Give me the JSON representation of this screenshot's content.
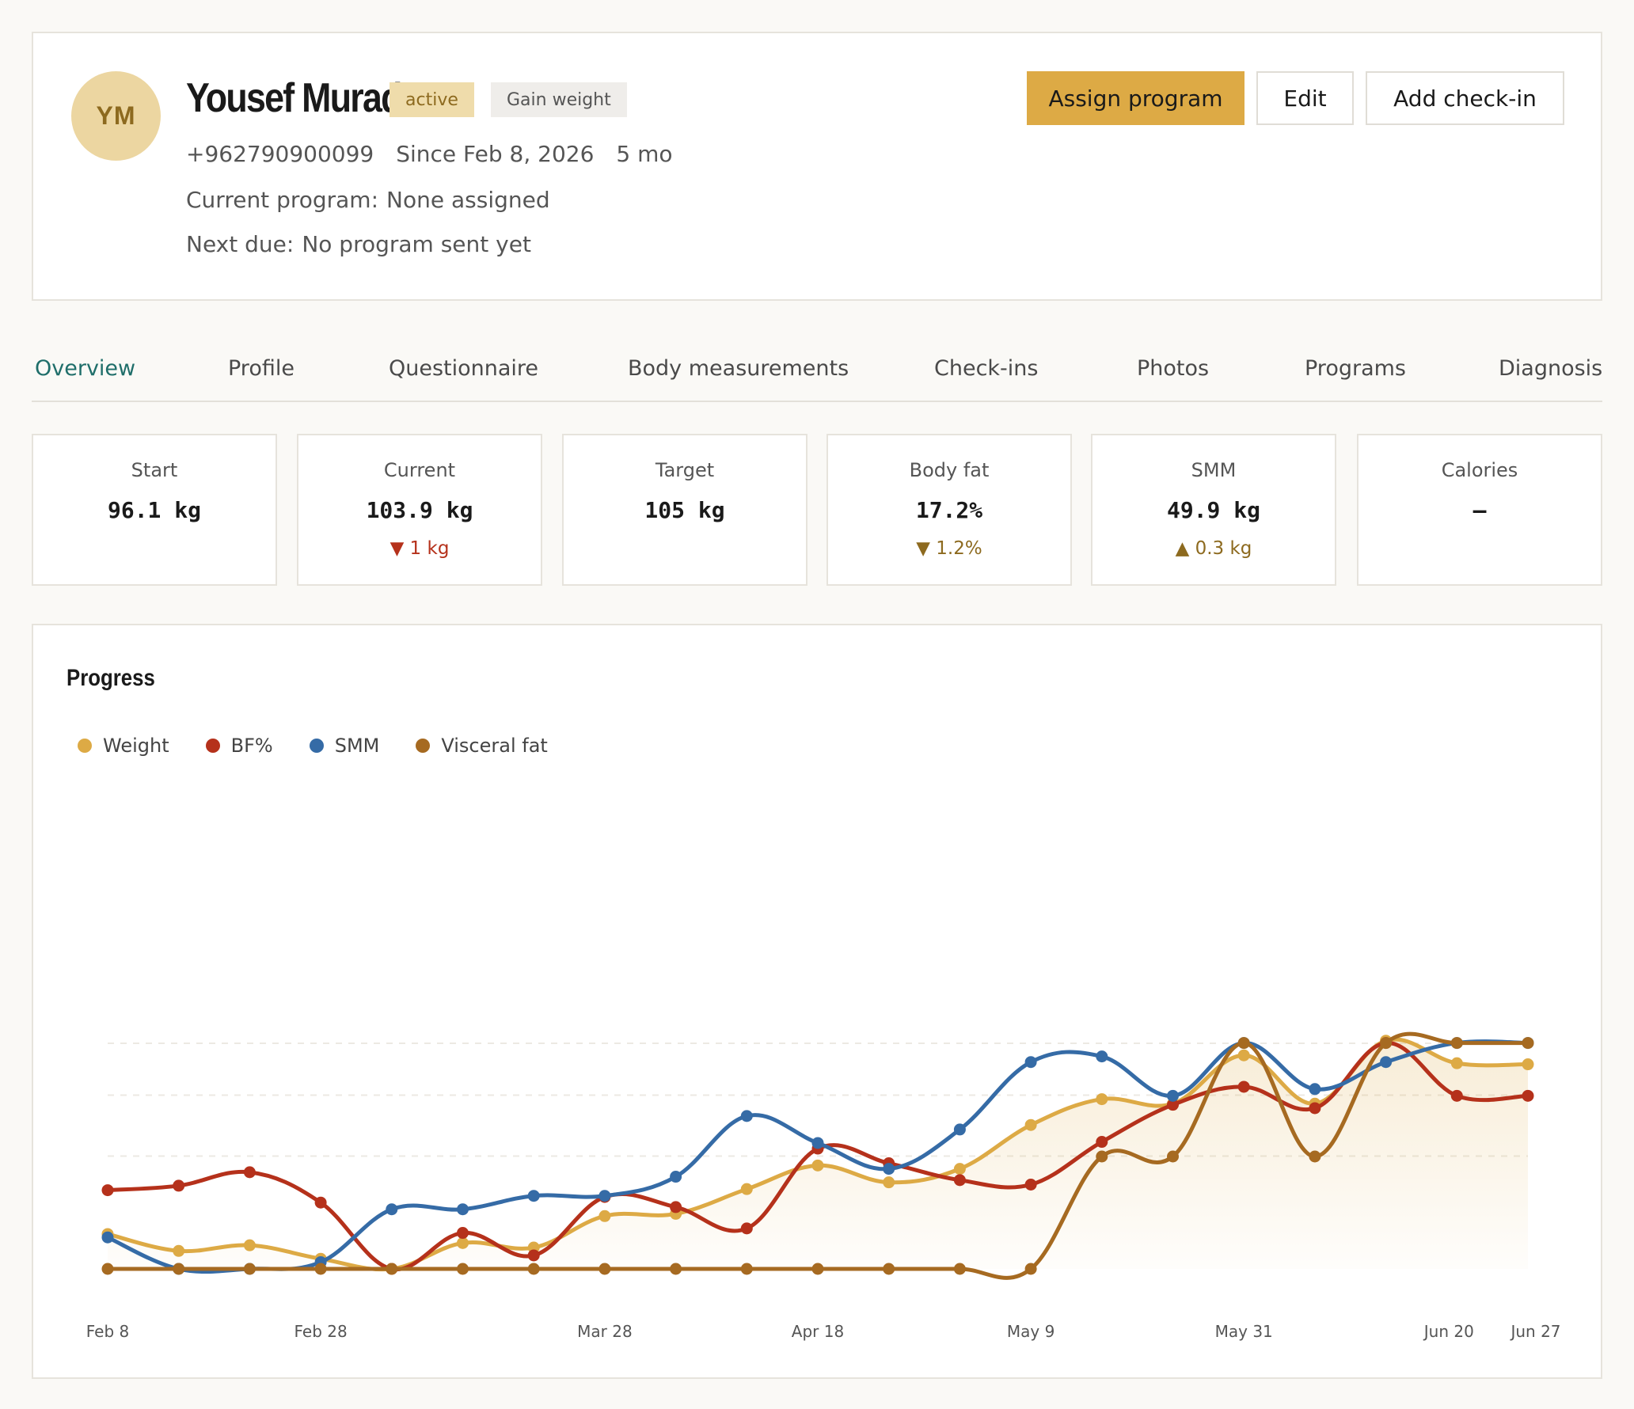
{
  "client": {
    "initials": "YM",
    "name": "Yousef Murad",
    "status": "active",
    "goal": "Gain weight",
    "phone": "+962790900099",
    "since": "Since Feb 8, 2026",
    "duration": "5 mo",
    "current_program_label": "Current program:",
    "current_program_value": "None assigned",
    "next_due_label": "Next due:",
    "next_due_value": "No program sent yet"
  },
  "actions": {
    "assign": "Assign program",
    "edit": "Edit",
    "add_checkin": "Add check-in"
  },
  "tabs": [
    "Overview",
    "Profile",
    "Questionnaire",
    "Body measurements",
    "Check-ins",
    "Photos",
    "Programs",
    "Diagnosis"
  ],
  "active_tab": "Overview",
  "stats": [
    {
      "label": "Start",
      "value": "96.1 kg",
      "delta": ""
    },
    {
      "label": "Current",
      "value": "103.9 kg",
      "delta": "▼ 1 kg"
    },
    {
      "label": "Target",
      "value": "105 kg",
      "delta": ""
    },
    {
      "label": "Body fat",
      "value": "17.2%",
      "delta": "▼ 1.2%"
    },
    {
      "label": "SMM",
      "value": "49.9 kg",
      "delta": "▲ 0.3 kg"
    },
    {
      "label": "Calories",
      "value": "—",
      "delta": ""
    }
  ],
  "colors": {
    "weight": "#ddaa45",
    "bf": "#b5311b",
    "smm": "#356ba6",
    "visceral": "#a66a21"
  },
  "chart": {
    "title": "Progress"
  },
  "chart_data": {
    "type": "line",
    "title": "Progress",
    "x_tick_labels": [
      "Feb 8",
      "Feb 28",
      "Mar 28",
      "Apr 18",
      "May 9",
      "May 31",
      "Jun 20",
      "Jun 27"
    ],
    "x": [
      "Feb 8",
      "Feb 15",
      "Feb 22",
      "Feb 28",
      "Mar 7",
      "Mar 14",
      "Mar 21",
      "Mar 28",
      "Apr 4",
      "Apr 11",
      "Apr 18",
      "Apr 25",
      "May 2",
      "May 9",
      "May 16",
      "May 24",
      "May 31",
      "Jun 7",
      "Jun 14",
      "Jun 20",
      "Jun 27"
    ],
    "grid": "dashed horizontal",
    "legend_position": "top-left",
    "series": [
      {
        "name": "Weight",
        "values": [
          31,
          16,
          21,
          9,
          0,
          23,
          19,
          47,
          49,
          71,
          92,
          77,
          89,
          128,
          151,
          147,
          190,
          147,
          203,
          183,
          182
        ]
      },
      {
        "name": "BF%",
        "values": [
          70,
          74,
          86,
          59,
          0,
          32,
          12,
          64,
          55,
          36,
          107,
          94,
          79,
          75,
          113,
          146,
          162,
          143,
          201,
          154,
          154
        ]
      },
      {
        "name": "SMM",
        "values": [
          28,
          0,
          0,
          6,
          53,
          53,
          65,
          65,
          82,
          136,
          112,
          89,
          124,
          184,
          189,
          154,
          201,
          160,
          184,
          201,
          201
        ]
      },
      {
        "name": "Visceral fat",
        "values": [
          0,
          0,
          0,
          0,
          0,
          0,
          0,
          0,
          0,
          0,
          0,
          0,
          0,
          0,
          100,
          100,
          201,
          100,
          201,
          201,
          201
        ]
      }
    ]
  }
}
